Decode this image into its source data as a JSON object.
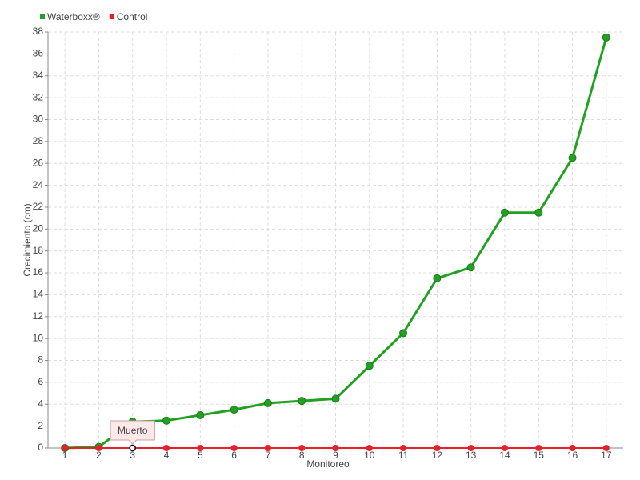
{
  "chart_data": {
    "type": "line",
    "x_label": "Monitoreo",
    "y_label": "Crecimiento (cm)",
    "categories": [
      "1",
      "2",
      "3",
      "4",
      "5",
      "6",
      "7",
      "8",
      "9",
      "10",
      "11",
      "12",
      "13",
      "14",
      "15",
      "16",
      "17"
    ],
    "series": [
      {
        "name": "Waterboxx®",
        "color": "#22a022",
        "values": [
          0,
          0.1,
          2.4,
          2.5,
          3.0,
          3.5,
          4.1,
          4.3,
          4.5,
          7.5,
          10.5,
          15.5,
          16.5,
          21.5,
          21.5,
          26.5,
          37.5
        ]
      },
      {
        "name": "Control",
        "color": "#e8202a",
        "values": [
          0,
          0,
          0,
          0,
          0,
          0,
          0,
          0,
          0,
          0,
          0,
          0,
          0,
          0,
          0,
          0,
          0
        ]
      }
    ],
    "ylim": [
      0,
      38
    ],
    "yticks": [
      0,
      2,
      4,
      6,
      8,
      10,
      12,
      14,
      16,
      18,
      20,
      22,
      24,
      26,
      28,
      30,
      32,
      34,
      36,
      38
    ],
    "grid": true,
    "tooltip": {
      "text": "Muerto",
      "series": "Control",
      "category": "3"
    }
  }
}
